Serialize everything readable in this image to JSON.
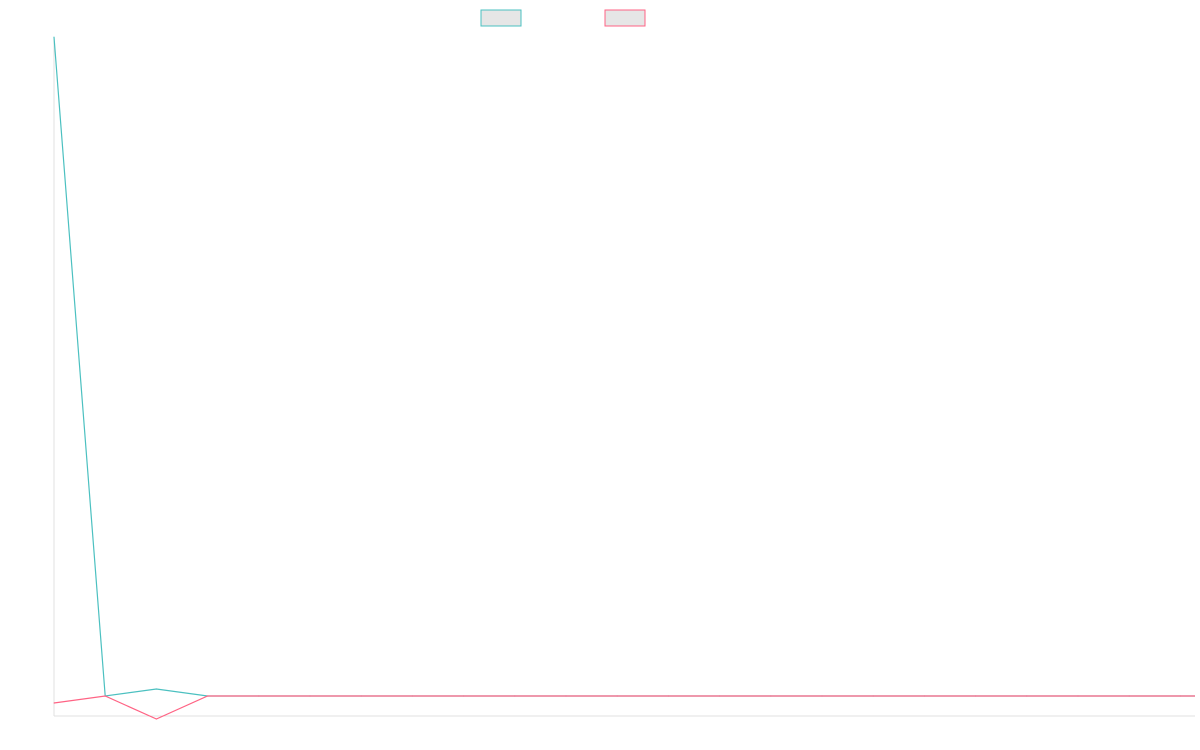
{
  "chart_data": {
    "type": "line",
    "title": "",
    "xlabel": "",
    "ylabel": "",
    "grid": false,
    "legend": "top-center",
    "x": [
      0,
      1,
      2,
      3,
      4,
      5,
      6,
      7,
      8,
      9,
      10,
      11,
      12,
      13,
      14,
      15,
      16,
      17,
      18,
      19,
      20,
      21,
      22
    ],
    "xlim": [
      0,
      22
    ],
    "ylim": [
      -20,
      660
    ],
    "series": [
      {
        "color": "#4bc0c0",
        "values": [
          660,
          0,
          7,
          0,
          0,
          0,
          0,
          0,
          0,
          0,
          0,
          0,
          0,
          0,
          0,
          0,
          0,
          0,
          0,
          0,
          0,
          0,
          0
        ]
      },
      {
        "color": "#ff6384",
        "values": [
          -7,
          0,
          -23,
          0,
          0,
          0,
          0,
          0,
          0,
          0,
          0,
          0,
          0,
          0,
          0,
          0,
          0,
          0,
          0,
          0,
          0,
          0,
          0
        ]
      }
    ]
  }
}
